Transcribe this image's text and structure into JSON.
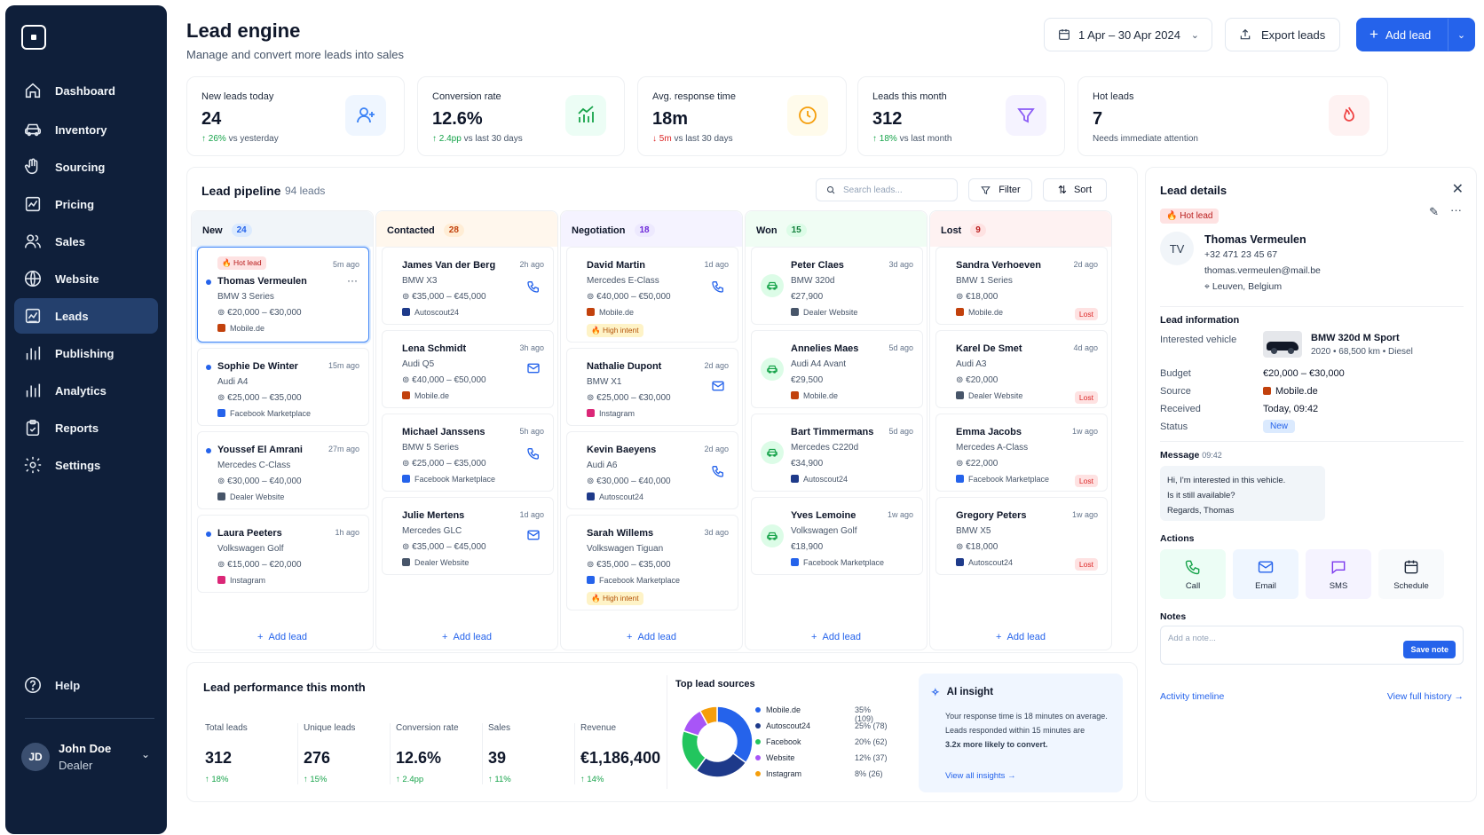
{
  "sidebar": {
    "items": [
      {
        "label": "Dashboard",
        "icon": "home-icon"
      },
      {
        "label": "Inventory",
        "icon": "car-icon"
      },
      {
        "label": "Sourcing",
        "icon": "hand-icon"
      },
      {
        "label": "Pricing",
        "icon": "chart-icon"
      },
      {
        "label": "Sales",
        "icon": "users-icon"
      },
      {
        "label": "Website",
        "icon": "globe-icon"
      },
      {
        "label": "Leads",
        "icon": "leads-icon"
      },
      {
        "label": "Publishing",
        "icon": "bars-icon"
      },
      {
        "label": "Analytics",
        "icon": "bars-icon"
      },
      {
        "label": "Reports",
        "icon": "clipboard-icon"
      },
      {
        "label": "Settings",
        "icon": "gear-icon"
      }
    ],
    "help": "Help",
    "user": {
      "initials": "JD",
      "name": "John Doe",
      "role": "Dealer"
    }
  },
  "header": {
    "title": "Lead engine",
    "subtitle": "Manage and convert more leads into sales",
    "date_range": "1 Apr – 30 Apr 2024",
    "export": "Export leads",
    "add": "Add lead"
  },
  "kpis": [
    {
      "label": "New leads today",
      "value": "24",
      "trend": "26%",
      "trend_text": "vs yesterday",
      "dir": "up",
      "color": "#3b82f6",
      "bg": "#eff6ff"
    },
    {
      "label": "Conversion rate",
      "value": "12.6%",
      "trend": "2.4pp",
      "trend_text": "vs last 30 days",
      "dir": "up",
      "color": "#16a34a",
      "bg": "#ecfdf5"
    },
    {
      "label": "Avg. response time",
      "value": "18m",
      "trend": "5m",
      "trend_text": "vs last 30 days",
      "dir": "down",
      "color": "#f59e0b",
      "bg": "#fffbeb"
    },
    {
      "label": "Leads this month",
      "value": "312",
      "trend": "18%",
      "trend_text": "vs last month",
      "dir": "up",
      "color": "#8b5cf6",
      "bg": "#f5f3ff"
    },
    {
      "label": "Hot leads",
      "value": "7",
      "trend": "",
      "trend_text": "Needs immediate attention",
      "dir": "none",
      "color": "#ef4444",
      "bg": "#fef2f2"
    }
  ],
  "pipeline": {
    "title": "Lead pipeline",
    "count": "94 leads",
    "search_placeholder": "Search leads...",
    "filter": "Filter",
    "sort": "Sort",
    "add_lead": "Add lead",
    "columns": [
      {
        "name": "New",
        "count": "24",
        "top": "#f1f5f9",
        "cbg": "#dbeafe",
        "cfg": "#2563eb",
        "cards": [
          {
            "name": "Thomas Vermeulen",
            "car": "BMW 3 Series",
            "price": "€20,000 – €30,000",
            "source": "Mobile.de",
            "src_color": "#c2410c",
            "time": "5m ago",
            "hot": "Hot lead",
            "selected": true,
            "menu": "···"
          },
          {
            "name": "Sophie De Winter",
            "car": "Audi A4",
            "price": "€25,000 – €35,000",
            "source": "Facebook Marketplace",
            "src_color": "#2563eb",
            "time": "15m ago"
          },
          {
            "name": "Youssef El Amrani",
            "car": "Mercedes C-Class",
            "price": "€30,000 – €40,000",
            "source": "Dealer Website",
            "src_color": "#475569",
            "time": "27m ago"
          },
          {
            "name": "Laura Peeters",
            "car": "Volkswagen Golf",
            "price": "€15,000 – €20,000",
            "source": "Instagram",
            "src_color": "#db2777",
            "time": "1h ago"
          }
        ]
      },
      {
        "name": "Contacted",
        "count": "28",
        "top": "#fff7ed",
        "cbg": "#ffedd5",
        "cfg": "#c2410c",
        "cards": [
          {
            "name": "James Van der Berg",
            "car": "BMW X3",
            "price": "€35,000 – €45,000",
            "source": "Autoscout24",
            "src_color": "#1e3a8a",
            "time": "2h ago",
            "action": "phone"
          },
          {
            "name": "Lena Schmidt",
            "car": "Audi Q5",
            "price": "€40,000 – €50,000",
            "source": "Mobile.de",
            "src_color": "#c2410c",
            "time": "3h ago",
            "action": "mail"
          },
          {
            "name": "Michael Janssens",
            "car": "BMW 5 Series",
            "price": "€25,000 – €35,000",
            "source": "Facebook Marketplace",
            "src_color": "#2563eb",
            "time": "5h ago",
            "action": "phone"
          },
          {
            "name": "Julie Mertens",
            "car": "Mercedes GLC",
            "price": "€35,000 – €45,000",
            "source": "Dealer Website",
            "src_color": "#475569",
            "time": "1d ago",
            "action": "mail"
          }
        ]
      },
      {
        "name": "Negotiation",
        "count": "18",
        "top": "#f5f3ff",
        "cbg": "#ede9fe",
        "cfg": "#6d28d9",
        "cards": [
          {
            "name": "David Martin",
            "car": "Mercedes E-Class",
            "price": "€40,000 – €50,000",
            "source": "Mobile.de",
            "src_color": "#c2410c",
            "time": "1d ago",
            "action": "phone",
            "intent": "High intent"
          },
          {
            "name": "Nathalie Dupont",
            "car": "BMW X1",
            "price": "€25,000 – €30,000",
            "source": "Instagram",
            "src_color": "#db2777",
            "time": "2d ago",
            "action": "mail"
          },
          {
            "name": "Kevin Baeyens",
            "car": "Audi A6",
            "price": "€30,000 – €40,000",
            "source": "Autoscout24",
            "src_color": "#1e3a8a",
            "time": "2d ago",
            "action": "phone"
          },
          {
            "name": "Sarah Willems",
            "car": "Volkswagen Tiguan",
            "price": "€35,000 – €35,000",
            "source": "Facebook Marketplace",
            "src_color": "#2563eb",
            "time": "3d ago",
            "intent": "High intent"
          }
        ]
      },
      {
        "name": "Won",
        "count": "15",
        "top": "#f0fdf4",
        "cbg": "#dcfce7",
        "cfg": "#15803d",
        "cards": [
          {
            "name": "Peter Claes",
            "car": "BMW 320d",
            "price": "€27,900",
            "source": "Dealer Website",
            "src_color": "#475569",
            "time": "3d ago",
            "won": true
          },
          {
            "name": "Annelies Maes",
            "car": "Audi A4 Avant",
            "price": "€29,500",
            "source": "Mobile.de",
            "src_color": "#c2410c",
            "time": "5d ago",
            "won": true
          },
          {
            "name": "Bart Timmermans",
            "car": "Mercedes C220d",
            "price": "€34,900",
            "source": "Autoscout24",
            "src_color": "#1e3a8a",
            "time": "5d ago",
            "won": true
          },
          {
            "name": "Yves Lemoine",
            "car": "Volkswagen Golf",
            "price": "€18,900",
            "source": "Facebook Marketplace",
            "src_color": "#2563eb",
            "time": "1w ago",
            "won": true
          }
        ]
      },
      {
        "name": "Lost",
        "count": "9",
        "top": "#fef2f2",
        "cbg": "#fee2e2",
        "cfg": "#b91c1c",
        "cards": [
          {
            "name": "Sandra Verhoeven",
            "car": "BMW 1 Series",
            "price": "€18,000",
            "source": "Mobile.de",
            "src_color": "#c2410c",
            "time": "2d ago",
            "lost": "Lost"
          },
          {
            "name": "Karel De Smet",
            "car": "Audi A3",
            "price": "€20,000",
            "source": "Dealer Website",
            "src_color": "#475569",
            "time": "4d ago",
            "lost": "Lost"
          },
          {
            "name": "Emma Jacobs",
            "car": "Mercedes A-Class",
            "price": "€22,000",
            "source": "Facebook Marketplace",
            "src_color": "#2563eb",
            "time": "1w ago",
            "lost": "Lost"
          },
          {
            "name": "Gregory Peters",
            "car": "BMW X5",
            "price": "€18,000",
            "source": "Autoscout24",
            "src_color": "#1e3a8a",
            "time": "1w ago",
            "lost": "Lost"
          }
        ]
      }
    ]
  },
  "details": {
    "title": "Lead details",
    "hot": "Hot lead",
    "initials": "TV",
    "name": "Thomas Vermeulen",
    "phone": "+32 471 23 45 67",
    "email": "thomas.vermeulen@mail.be",
    "location": "Leuven, Belgium",
    "info_title": "Lead information",
    "interested_label": "Interested vehicle",
    "vehicle": "BMW 320d M Sport",
    "vehicle_meta": "2020 • 68,500 km • Diesel",
    "budget_label": "Budget",
    "budget": "€20,000 – €30,000",
    "source_label": "Source",
    "source": "Mobile.de",
    "received_label": "Received",
    "received": "Today, 09:42",
    "status_label": "Status",
    "status": "New",
    "message_title": "Message",
    "message_time": "09:42",
    "message_lines": [
      "Hi, I'm interested in this vehicle.",
      "Is it still available?",
      "Regards, Thomas"
    ],
    "actions_title": "Actions",
    "actions": [
      {
        "label": "Call",
        "icon": "phone-icon",
        "bg": "#ecfdf5",
        "fg": "#16a34a"
      },
      {
        "label": "Email",
        "icon": "mail-icon",
        "bg": "#eff6ff",
        "fg": "#2563eb"
      },
      {
        "label": "SMS",
        "icon": "sms-icon",
        "bg": "#f5f3ff",
        "fg": "#7c3aed"
      },
      {
        "label": "Schedule",
        "icon": "calendar-icon",
        "bg": "#f8fafc",
        "fg": "#1e293b"
      }
    ],
    "notes_title": "Notes",
    "note_placeholder": "Add a note...",
    "save_note": "Save note",
    "activity": "Activity timeline",
    "history": "View full history"
  },
  "performance": {
    "title": "Lead performance this month",
    "metrics": [
      {
        "label": "Total leads",
        "value": "312",
        "trend": "18%"
      },
      {
        "label": "Unique leads",
        "value": "276",
        "trend": "15%"
      },
      {
        "label": "Conversion rate",
        "value": "12.6%",
        "trend": "2.4pp"
      },
      {
        "label": "Sales",
        "value": "39",
        "trend": "11%"
      },
      {
        "label": "Revenue",
        "value": "€1,186,400",
        "trend": "14%"
      }
    ]
  },
  "sources": {
    "title": "Top lead sources",
    "items": [
      {
        "name": "Mobile.de",
        "value": "35% (109)",
        "pct": 35,
        "color": "#2563eb"
      },
      {
        "name": "Autoscout24",
        "value": "25% (78)",
        "pct": 25,
        "color": "#1e3a8a"
      },
      {
        "name": "Facebook",
        "value": "20% (62)",
        "pct": 20,
        "color": "#22c55e"
      },
      {
        "name": "Website",
        "value": "12% (37)",
        "pct": 12,
        "color": "#a855f7"
      },
      {
        "name": "Instagram",
        "value": "8% (26)",
        "pct": 8,
        "color": "#f59e0b"
      }
    ]
  },
  "insight": {
    "title": "AI insight",
    "text1": "Your response time is 18 minutes on average.",
    "text2": "Leads responded within 15 minutes are",
    "text3": "3.2x more likely to convert.",
    "link": "View all insights"
  }
}
